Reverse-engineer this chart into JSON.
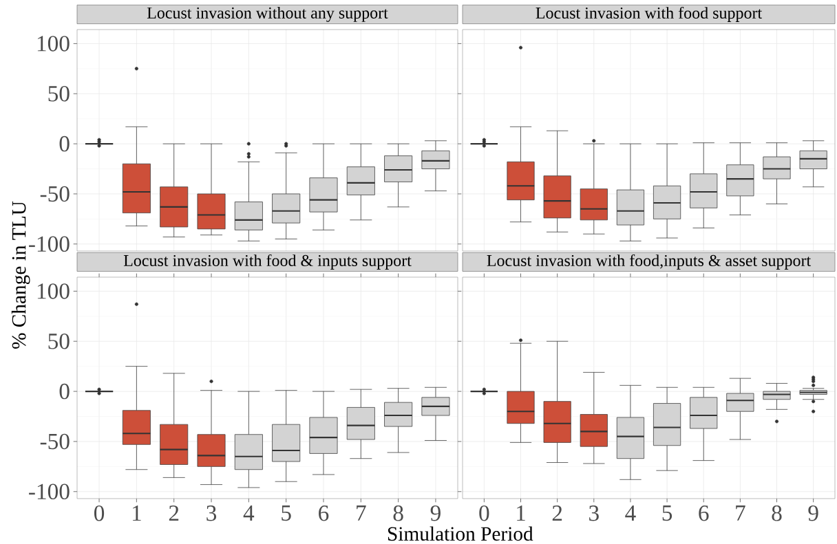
{
  "chart_data": [
    {
      "type": "box",
      "title": "Locust invasion without any support",
      "ylabel": "% Change in TLU",
      "categories": [
        "0",
        "1",
        "2",
        "3",
        "4",
        "5",
        "6",
        "7",
        "8",
        "9"
      ],
      "boxes": [
        {
          "low": 0,
          "q1": 0,
          "median": 0,
          "q3": 0,
          "high": 0,
          "outliers": [
            4,
            2,
            -2
          ]
        },
        {
          "low": -82,
          "q1": -69,
          "median": -48,
          "q3": -20,
          "high": 17,
          "outliers": [
            75
          ]
        },
        {
          "low": -93,
          "q1": -83,
          "median": -63,
          "q3": -43,
          "high": 0
        },
        {
          "low": -91,
          "q1": -85,
          "median": -71,
          "q3": -50,
          "high": 0
        },
        {
          "low": -97,
          "q1": -86,
          "median": -76,
          "q3": -58,
          "high": -18,
          "outliers": [
            0,
            -10,
            -13
          ]
        },
        {
          "low": -95,
          "q1": -79,
          "median": -67,
          "q3": -50,
          "high": -9,
          "outliers": [
            0,
            -2
          ]
        },
        {
          "low": -86,
          "q1": -68,
          "median": -56,
          "q3": -34,
          "high": 0
        },
        {
          "low": -76,
          "q1": -51,
          "median": -39,
          "q3": -23,
          "high": 0
        },
        {
          "low": -63,
          "q1": -38,
          "median": -26,
          "q3": -12,
          "high": 0
        },
        {
          "low": -47,
          "q1": -25,
          "median": -17,
          "q3": -7,
          "high": 3
        }
      ],
      "colors": [
        "#404040",
        "#cd4f39",
        "#cd4f39",
        "#cd4f39",
        "#d3d3d3",
        "#d3d3d3",
        "#d3d3d3",
        "#d3d3d3",
        "#d3d3d3",
        "#d3d3d3"
      ],
      "ylim": [
        -107,
        114
      ],
      "yticks": [
        -100,
        -50,
        0,
        50,
        100
      ],
      "grid": true,
      "tick_labels": "y"
    },
    {
      "type": "box",
      "title": "Locust invasion with food support",
      "categories": [
        "0",
        "1",
        "2",
        "3",
        "4",
        "5",
        "6",
        "7",
        "8",
        "9"
      ],
      "boxes": [
        {
          "low": 0,
          "q1": 0,
          "median": 0,
          "q3": 0,
          "high": 0,
          "outliers": [
            4,
            2,
            -2
          ]
        },
        {
          "low": -78,
          "q1": -56,
          "median": -42,
          "q3": -18,
          "high": 17,
          "outliers": [
            96
          ]
        },
        {
          "low": -88,
          "q1": -74,
          "median": -57,
          "q3": -32,
          "high": 13
        },
        {
          "low": -90,
          "q1": -76,
          "median": -65,
          "q3": -45,
          "high": 0,
          "outliers": [
            3
          ]
        },
        {
          "low": -97,
          "q1": -81,
          "median": -67,
          "q3": -46,
          "high": 0
        },
        {
          "low": -94,
          "q1": -75,
          "median": -59,
          "q3": -42,
          "high": 0
        },
        {
          "low": -84,
          "q1": -64,
          "median": -48,
          "q3": -30,
          "high": 1
        },
        {
          "low": -71,
          "q1": -52,
          "median": -35,
          "q3": -21,
          "high": 1
        },
        {
          "low": -60,
          "q1": -35,
          "median": -25,
          "q3": -13,
          "high": 1
        },
        {
          "low": -43,
          "q1": -25,
          "median": -15,
          "q3": -7,
          "high": 3
        }
      ],
      "colors": [
        "#404040",
        "#cd4f39",
        "#cd4f39",
        "#cd4f39",
        "#d3d3d3",
        "#d3d3d3",
        "#d3d3d3",
        "#d3d3d3",
        "#d3d3d3",
        "#d3d3d3"
      ],
      "ylim": [
        -107,
        114
      ],
      "yticks": [
        -100,
        -50,
        0,
        50,
        100
      ],
      "grid": true,
      "tick_labels": false
    },
    {
      "type": "box",
      "title": "Locust invasion with food & inputs support",
      "xlabel": "Simulation Period",
      "categories": [
        "0",
        "1",
        "2",
        "3",
        "4",
        "5",
        "6",
        "7",
        "8",
        "9"
      ],
      "boxes": [
        {
          "low": 0,
          "q1": 0,
          "median": 0,
          "q3": 0,
          "high": 0,
          "outliers": [
            2,
            -2
          ]
        },
        {
          "low": -78,
          "q1": -53,
          "median": -42,
          "q3": -19,
          "high": 25,
          "outliers": [
            87
          ]
        },
        {
          "low": -86,
          "q1": -73,
          "median": -58,
          "q3": -33,
          "high": 18
        },
        {
          "low": -93,
          "q1": -75,
          "median": -64,
          "q3": -43,
          "high": 1,
          "outliers": [
            10
          ]
        },
        {
          "low": -96,
          "q1": -78,
          "median": -65,
          "q3": -43,
          "high": 0
        },
        {
          "low": -90,
          "q1": -70,
          "median": -59,
          "q3": -33,
          "high": 1
        },
        {
          "low": -83,
          "q1": -62,
          "median": -46,
          "q3": -26,
          "high": 0
        },
        {
          "low": -67,
          "q1": -48,
          "median": -34,
          "q3": -16,
          "high": 2
        },
        {
          "low": -61,
          "q1": -35,
          "median": -24,
          "q3": -11,
          "high": 3
        },
        {
          "low": -49,
          "q1": -24,
          "median": -15,
          "q3": -6,
          "high": 4
        }
      ],
      "colors": [
        "#404040",
        "#cd4f39",
        "#cd4f39",
        "#cd4f39",
        "#d3d3d3",
        "#d3d3d3",
        "#d3d3d3",
        "#d3d3d3",
        "#d3d3d3",
        "#d3d3d3"
      ],
      "ylim": [
        -107,
        114
      ],
      "yticks": [
        -100,
        -50,
        0,
        50,
        100
      ],
      "grid": true
    },
    {
      "type": "box",
      "title": "Locust invasion with food,inputs & asset support",
      "categories": [
        "0",
        "1",
        "2",
        "3",
        "4",
        "5",
        "6",
        "7",
        "8",
        "9"
      ],
      "boxes": [
        {
          "low": 0,
          "q1": 0,
          "median": 0,
          "q3": 0,
          "high": 0,
          "outliers": [
            2,
            -2
          ]
        },
        {
          "low": -51,
          "q1": -32,
          "median": -20,
          "q3": 0,
          "high": 48,
          "outliers": [
            51
          ]
        },
        {
          "low": -71,
          "q1": -51,
          "median": -32,
          "q3": -10,
          "high": 50
        },
        {
          "low": -72,
          "q1": -55,
          "median": -40,
          "q3": -23,
          "high": 19
        },
        {
          "low": -88,
          "q1": -67,
          "median": -45,
          "q3": -26,
          "high": 6
        },
        {
          "low": -79,
          "q1": -54,
          "median": -36,
          "q3": -12,
          "high": 4
        },
        {
          "low": -69,
          "q1": -37,
          "median": -24,
          "q3": -6,
          "high": 4
        },
        {
          "low": -48,
          "q1": -20,
          "median": -9,
          "q3": -2,
          "high": 13
        },
        {
          "low": -18,
          "q1": -8,
          "median": -3,
          "q3": 0,
          "high": 8,
          "outliers": [
            -30
          ]
        },
        {
          "low": -8,
          "q1": -3,
          "median": -1,
          "q3": 1,
          "high": 3,
          "outliers": [
            14,
            12,
            10,
            6,
            -10,
            -20
          ]
        }
      ],
      "colors": [
        "#404040",
        "#cd4f39",
        "#cd4f39",
        "#cd4f39",
        "#d3d3d3",
        "#d3d3d3",
        "#d3d3d3",
        "#d3d3d3",
        "#d3d3d3",
        "#d3d3d3"
      ],
      "ylim": [
        -107,
        114
      ],
      "yticks": [
        -100,
        -50,
        0,
        50,
        100
      ],
      "grid": true,
      "tick_labels": "x"
    }
  ]
}
